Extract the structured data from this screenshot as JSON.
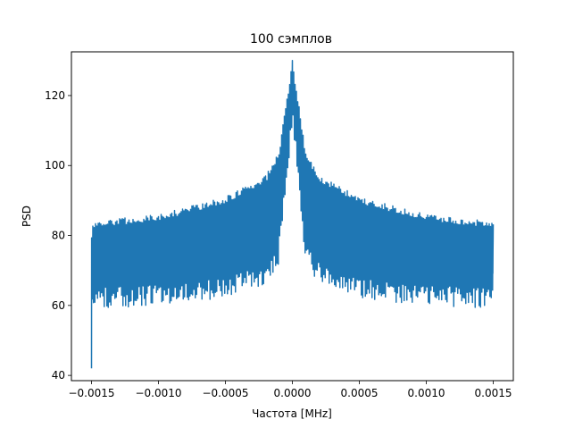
{
  "chart_data": {
    "type": "line",
    "title": "100 сэмплов",
    "xlabel": "Частота [MHz]",
    "ylabel": "PSD",
    "xlim": [
      -0.00165,
      0.00165
    ],
    "ylim": [
      38.5,
      132.5
    ],
    "x_ticks": [
      -0.0015,
      -0.001,
      -0.0005,
      0.0,
      0.0005,
      0.001,
      0.0015
    ],
    "x_tick_labels": [
      "−0.0015",
      "−0.0010",
      "−0.0005",
      "0.0000",
      "0.0005",
      "0.0010",
      "0.0015"
    ],
    "y_ticks": [
      40,
      60,
      80,
      100,
      120
    ],
    "y_tick_labels": [
      "40",
      "60",
      "80",
      "100",
      "120"
    ],
    "grid": false,
    "series": [
      {
        "color": "#1f77b4",
        "x_range": [
          -0.0015,
          0.0015
        ],
        "n_points": 100,
        "peak": 130,
        "min_value": 42,
        "envelope_x": [
          -0.0015,
          -0.001,
          -0.0005,
          -0.0002,
          -0.0001,
          0.0,
          0.0001,
          0.0002,
          0.0005,
          0.001,
          0.0015
        ],
        "envelope_upper": [
          84,
          86,
          91,
          97,
          104,
          130,
          104,
          97,
          91,
          86,
          84
        ],
        "envelope_lower": [
          65,
          66,
          68,
          72,
          78,
          118,
          78,
          72,
          68,
          66,
          65
        ]
      }
    ]
  }
}
